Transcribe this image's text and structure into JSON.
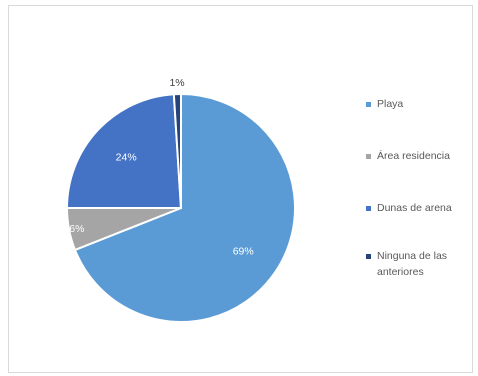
{
  "chart_data": {
    "type": "pie",
    "title": "",
    "slices": [
      {
        "label": "Playa",
        "value": 69,
        "display": "69%",
        "color": "#5b9bd5",
        "label_color": "#ffffff"
      },
      {
        "label": "Área residencia",
        "value": 6,
        "display": "6%",
        "color": "#a5a5a5",
        "label_color": "#ffffff"
      },
      {
        "label": "Dunas de arena",
        "value": 24,
        "display": "24%",
        "color": "#4472c4",
        "label_color": "#ffffff"
      },
      {
        "label": "Ninguna de las anteriores",
        "value": 1,
        "display": "1%",
        "color": "#264478",
        "label_color": "#404040"
      }
    ],
    "legend_position": "right"
  }
}
